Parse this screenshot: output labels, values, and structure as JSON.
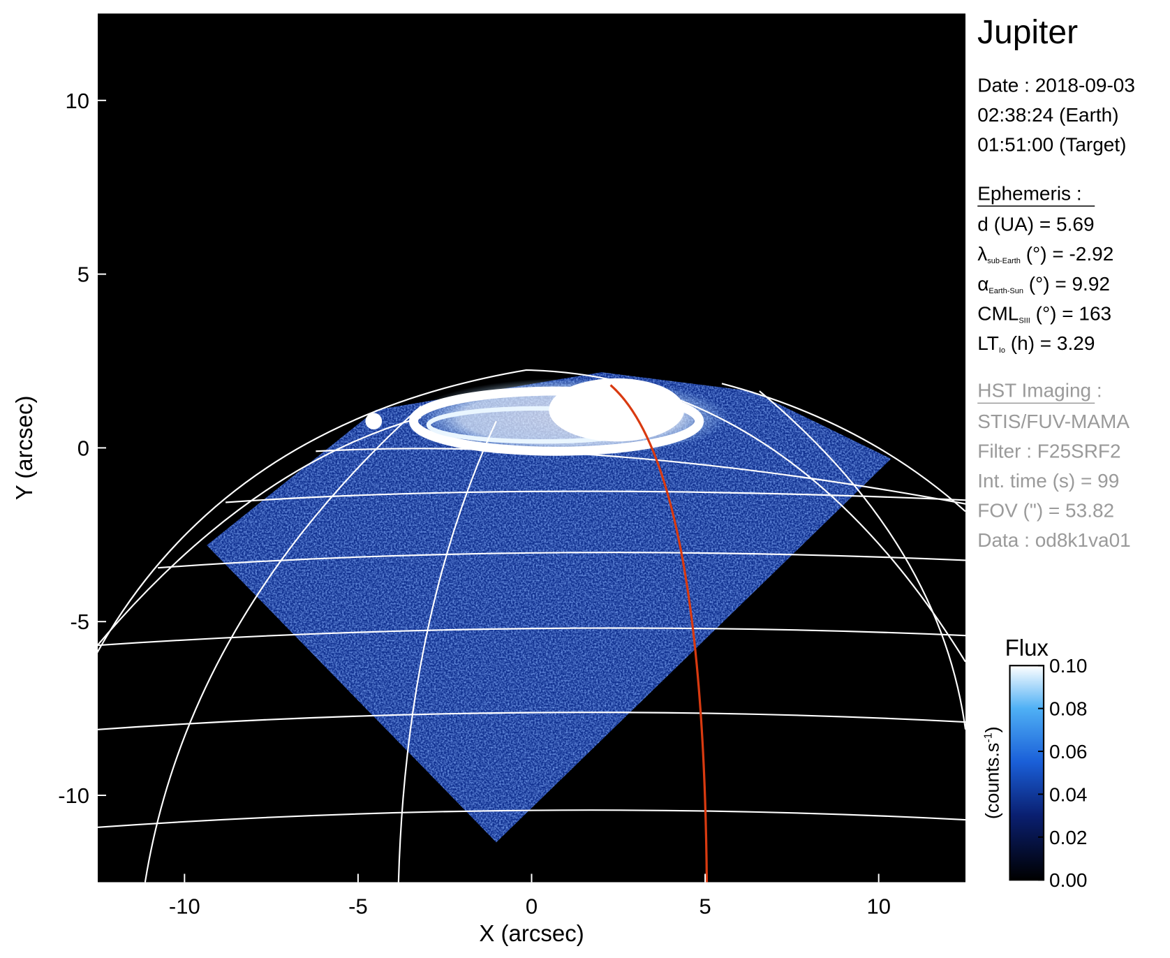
{
  "chart_data": {
    "type": "image",
    "title": "Jupiter",
    "x_label": "X (arcsec)",
    "y_label": "Y (arcsec)",
    "xlim": [
      -12.5,
      12.5
    ],
    "ylim": [
      -12.5,
      12.5
    ],
    "xticks": [
      -10,
      -5,
      0,
      5,
      10
    ],
    "yticks": [
      -10,
      -5,
      0,
      5,
      10
    ],
    "colorbar": {
      "label": "Flux",
      "unit": "(counts.s",
      "unit_sup": "-1",
      "unit_end": ")",
      "lim": [
        0,
        0.1
      ],
      "ticks": [
        {
          "value": 0,
          "label": "0.00"
        },
        {
          "value": 0.02,
          "label": "0.02"
        },
        {
          "value": 0.04,
          "label": "0.04"
        },
        {
          "value": 0.06,
          "label": "0.06"
        },
        {
          "value": 0.08,
          "label": "0.08"
        },
        {
          "value": 0.1,
          "label": "0.10"
        }
      ]
    }
  },
  "info": {
    "date": [
      "Date : 2018-09-03",
      "02:38:24 (Earth)",
      "01:51:00 (Target)"
    ],
    "ephemeris": {
      "title": "Ephemeris :",
      "lines": [
        {
          "symbol": "d (UA)",
          "text": "   = 5.69"
        },
        {
          "symbol": "λ",
          "sub": "sub-Earth",
          "text": " (°) = -2.92"
        },
        {
          "symbol": "α",
          "sub": "Earth-Sun",
          "text": " (°) = 9.92"
        },
        {
          "symbol": "CML",
          "sub": "SIII",
          "text": " (°) = 163"
        },
        {
          "symbol": "LT",
          "sub": "Io",
          "text": " (h) = 3.29"
        }
      ]
    },
    "observation": {
      "title": "HST Imaging :",
      "lines": [
        "STIS/FUV-MAMA",
        "Filter : F25SRF2",
        "Int. time (s) = 99",
        "FOV (\") = 53.82",
        "Data : od8k1va01"
      ]
    }
  }
}
